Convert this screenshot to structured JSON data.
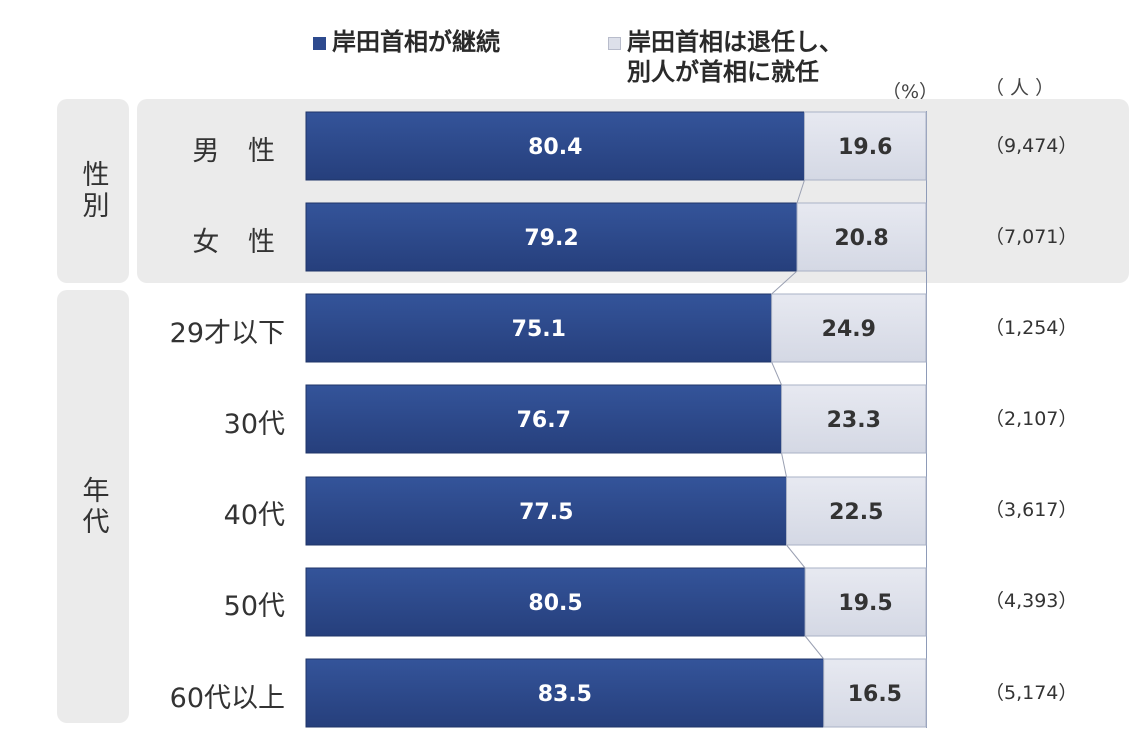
{
  "legend": [
    {
      "label": "岸田首相が継続",
      "color": "#2d4a8e"
    },
    {
      "label": "岸田首相は退任し、\n別人が首相に就任",
      "color": "#dde0ea"
    }
  ],
  "units": {
    "percent": "（%）",
    "people": "（ 人 ）"
  },
  "groups": [
    {
      "label": "性別"
    },
    {
      "label": "年代"
    }
  ],
  "chart_data": {
    "type": "bar",
    "orientation": "horizontal",
    "stacked": true,
    "xlim": [
      0,
      100
    ],
    "categories": [
      "男 性",
      "女 性",
      "29才以下",
      "30代",
      "40代",
      "50代",
      "60代以上"
    ],
    "group_index": [
      0,
      0,
      1,
      1,
      1,
      1,
      1
    ],
    "series": [
      {
        "name": "岸田首相が継続",
        "values": [
          80.4,
          79.2,
          75.1,
          76.7,
          77.5,
          80.5,
          83.5
        ]
      },
      {
        "name": "岸田首相は退任し、別人が首相に就任",
        "values": [
          19.6,
          20.8,
          24.9,
          23.3,
          22.5,
          19.5,
          16.5
        ]
      }
    ],
    "counts": [
      "（9,474）",
      "（7,071）",
      "（1,254）",
      "（2,107）",
      "（3,617）",
      "（4,393）",
      "（5,174）"
    ]
  }
}
